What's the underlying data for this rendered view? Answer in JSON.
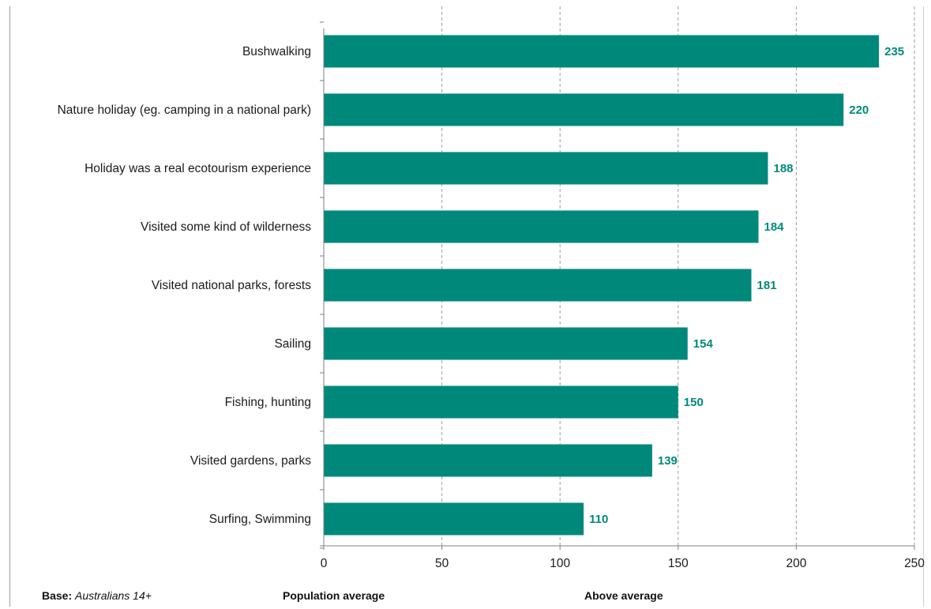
{
  "chart_data": {
    "type": "bar",
    "orientation": "horizontal",
    "categories": [
      "Bushwalking",
      "Nature holiday (eg. camping in a national park)",
      "Holiday was a real ecotourism experience",
      "Visited some kind of wilderness",
      "Visited national parks, forests",
      "Sailing",
      "Fishing, hunting",
      "Visited gardens, parks",
      "Surfing, Swimming"
    ],
    "values": [
      235,
      220,
      188,
      184,
      181,
      154,
      150,
      139,
      110
    ],
    "data_labels": [
      "235",
      "220",
      "188",
      "184",
      "181",
      "154",
      "150",
      "139",
      "110"
    ],
    "xlim": [
      0,
      250
    ],
    "x_ticks": [
      0,
      50,
      100,
      150,
      200,
      250
    ],
    "x_tick_labels": [
      "0",
      "50",
      "100",
      "150",
      "200",
      "250"
    ],
    "grid": "vertical dashed",
    "bar_color": "#00897b",
    "label_color": "#00897b",
    "grid_color": "#9e9e9e",
    "axis_color": "#7f7f7f"
  },
  "footer": {
    "base_label": "Base:",
    "base_value": "Australians 14+",
    "population_average": "Population average",
    "above_average": "Above average"
  }
}
